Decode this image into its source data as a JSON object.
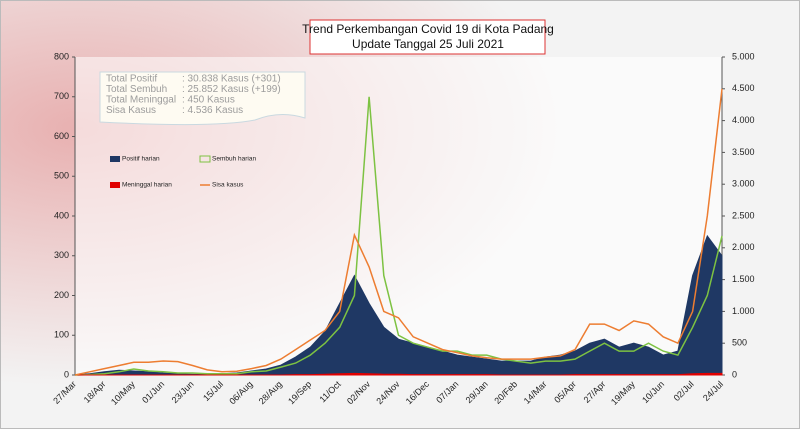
{
  "title_lines": [
    "Trend Perkembangan Covid 19 di Kota Padang",
    "Update Tanggal  25 Juli 2021"
  ],
  "info": {
    "rows": [
      [
        "Total Positif",
        ": 30.838 Kasus  (+301)"
      ],
      [
        "Total Sembuh",
        ": 25.852 Kasus (+199)"
      ],
      [
        "Total Meninggal",
        ":      450 Kasus"
      ],
      [
        "Sisa Kasus",
        ":     4.536 Kasus"
      ]
    ]
  },
  "chart_data": {
    "type": "combo",
    "categories": [
      "27/Mar",
      null,
      "18/Apr",
      null,
      "10/May",
      null,
      "01/Jun",
      null,
      "23/Jun",
      null,
      "15/Jul",
      null,
      "06/Aug",
      null,
      "28/Aug",
      null,
      "19/Sep",
      null,
      "11/Oct",
      null,
      "02/Nov",
      null,
      "24/Nov",
      null,
      "16/Dec",
      null,
      "07/Jan",
      null,
      "29/Jan",
      null,
      "20/Feb",
      null,
      "14/Mar",
      null,
      "05/Apr",
      null,
      "27/Apr",
      null,
      "19/May",
      null,
      "10/Jun",
      null,
      "02/Jul",
      null,
      "24/Jul"
    ],
    "series": [
      {
        "name": "Positif harian",
        "color": "#1f3864",
        "style": "area",
        "values": [
          0,
          3,
          8,
          12,
          10,
          8,
          5,
          3,
          2,
          2,
          3,
          5,
          10,
          15,
          25,
          45,
          70,
          110,
          180,
          250,
          180,
          120,
          90,
          80,
          70,
          60,
          50,
          45,
          40,
          35,
          35,
          35,
          45,
          50,
          60,
          80,
          90,
          70,
          80,
          70,
          50,
          60,
          250,
          350,
          300
        ]
      },
      {
        "name": "Sembuh harian",
        "color": "#7dc242",
        "style": "line",
        "values": [
          0,
          1,
          3,
          8,
          15,
          10,
          8,
          5,
          5,
          3,
          3,
          3,
          8,
          10,
          20,
          30,
          50,
          80,
          120,
          200,
          700,
          250,
          100,
          80,
          70,
          60,
          60,
          50,
          50,
          40,
          35,
          30,
          35,
          35,
          40,
          60,
          80,
          60,
          60,
          80,
          60,
          50,
          120,
          200,
          350
        ]
      },
      {
        "name": "Meninggal harian",
        "color": "#e00000",
        "style": "area",
        "values": [
          0,
          0,
          0,
          0,
          0,
          0,
          0,
          0,
          0,
          0,
          0,
          0,
          0,
          0,
          0,
          1,
          1,
          2,
          3,
          4,
          3,
          2,
          2,
          1,
          1,
          1,
          1,
          1,
          1,
          0,
          0,
          0,
          0,
          0,
          1,
          1,
          1,
          1,
          1,
          1,
          1,
          1,
          3,
          4,
          4
        ]
      },
      {
        "name": "Sisa kasus",
        "color": "#ed7d31",
        "style": "line",
        "axis": "y2",
        "values": [
          0,
          50,
          100,
          150,
          200,
          200,
          220,
          210,
          150,
          80,
          50,
          60,
          100,
          150,
          250,
          400,
          550,
          700,
          1000,
          2200,
          1700,
          1000,
          900,
          600,
          500,
          400,
          350,
          300,
          270,
          250,
          250,
          250,
          280,
          300,
          400,
          800,
          800,
          700,
          850,
          800,
          600,
          500,
          1000,
          2500,
          4500
        ]
      }
    ],
    "ylim": [
      0,
      800
    ],
    "yticks": [
      0,
      100,
      200,
      300,
      400,
      500,
      600,
      700,
      800
    ],
    "y2lim": [
      0,
      5000
    ],
    "y2ticks": [
      0,
      500,
      {
        "value": 1000,
        "label": "1.000"
      },
      {
        "value": 1500,
        "label": "1.500"
      },
      {
        "value": 2000,
        "label": "2.000"
      },
      {
        "value": 2500,
        "label": "2.500"
      },
      {
        "value": 3000,
        "label": "3.000"
      },
      {
        "value": 3500,
        "label": "3.500"
      },
      {
        "value": 4000,
        "label": "4.000"
      },
      {
        "value": 4500,
        "label": "4.500"
      },
      {
        "value": 5000,
        "label": "5.000"
      }
    ]
  }
}
